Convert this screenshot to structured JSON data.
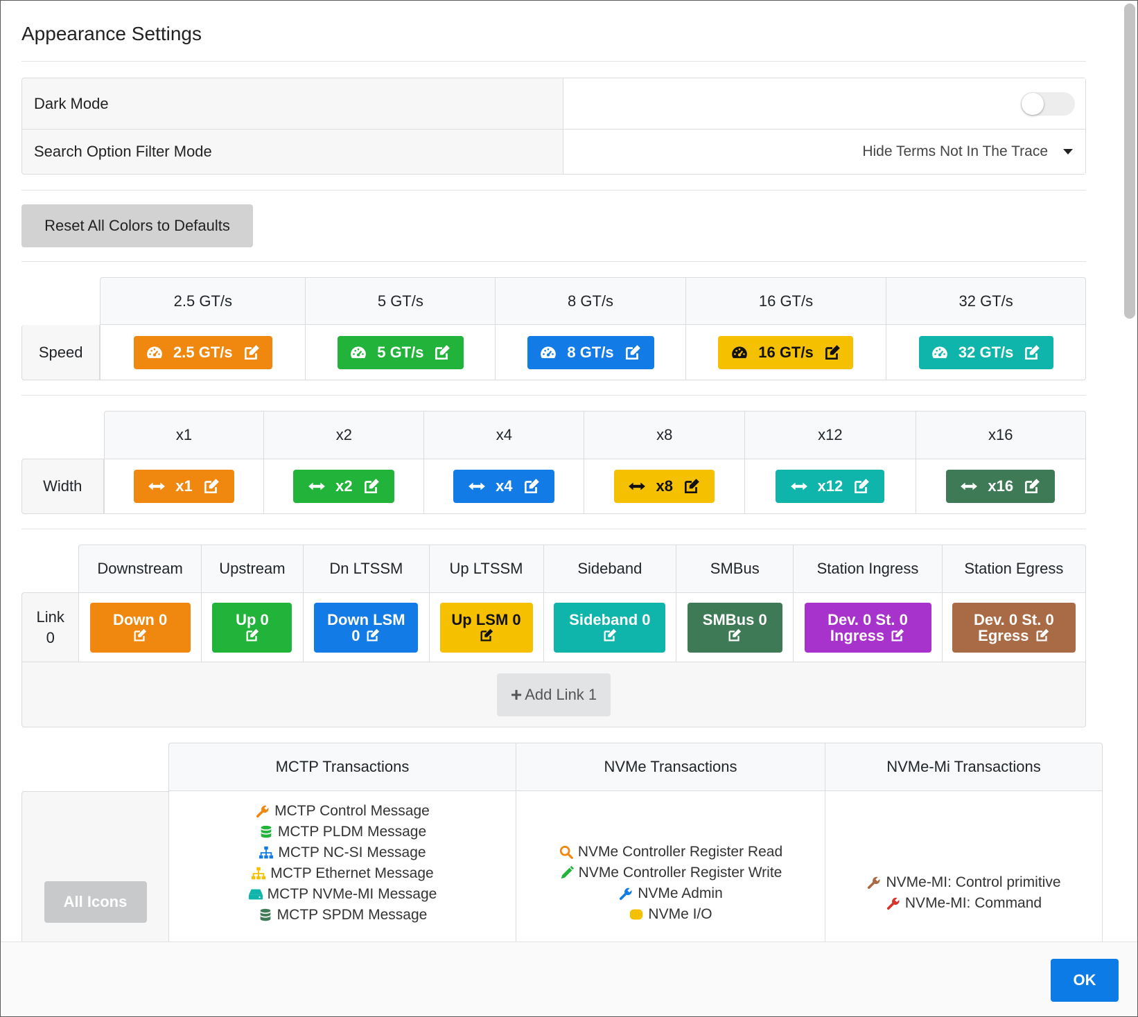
{
  "dialog": {
    "title": "Appearance Settings",
    "ok_label": "OK"
  },
  "settings": {
    "dark_mode_label": "Dark Mode",
    "dark_mode_on": false,
    "filter_mode_label": "Search Option Filter Mode",
    "filter_mode_value": "Hide Terms Not In The Trace"
  },
  "reset_label": "Reset All Colors to Defaults",
  "speed": {
    "row_label": "Speed",
    "columns": [
      "2.5 GT/s",
      "5 GT/s",
      "8 GT/s",
      "16 GT/s",
      "32 GT/s"
    ],
    "buttons": [
      {
        "label": "2.5 GT/s",
        "color": "#f0870e"
      },
      {
        "label": "5 GT/s",
        "color": "#22b33b"
      },
      {
        "label": "8 GT/s",
        "color": "#127be6"
      },
      {
        "label": "16 GT/s",
        "color": "#f5c000"
      },
      {
        "label": "32 GT/s",
        "color": "#0fb5aa"
      }
    ]
  },
  "width": {
    "row_label": "Width",
    "columns": [
      "x1",
      "x2",
      "x4",
      "x8",
      "x12",
      "x16"
    ],
    "buttons": [
      {
        "label": "x1",
        "color": "#f0870e"
      },
      {
        "label": "x2",
        "color": "#22b33b"
      },
      {
        "label": "x4",
        "color": "#127be6"
      },
      {
        "label": "x8",
        "color": "#f5c000"
      },
      {
        "label": "x12",
        "color": "#0fb5aa"
      },
      {
        "label": "x16",
        "color": "#3f7a57"
      }
    ]
  },
  "link": {
    "row_label_1": "Link",
    "row_label_2": "0",
    "columns": [
      "Downstream",
      "Upstream",
      "Dn LTSSM",
      "Up LTSSM",
      "Sideband",
      "SMBus",
      "Station Ingress",
      "Station Egress"
    ],
    "buttons": [
      {
        "line1": "Down 0",
        "line2": "",
        "color": "#f0870e"
      },
      {
        "line1": "Up 0",
        "line2": "",
        "color": "#22b33b"
      },
      {
        "line1": "Down LSM",
        "line2": "0",
        "color": "#127be6"
      },
      {
        "line1": "Up LSM 0",
        "line2": "",
        "color": "#f5c000"
      },
      {
        "line1": "Sideband 0",
        "line2": "",
        "color": "#0fb5aa"
      },
      {
        "line1": "SMBus 0",
        "line2": "",
        "color": "#3f7a57"
      },
      {
        "line1": "Dev. 0 St. 0",
        "line2": "Ingress",
        "color": "#a833cc"
      },
      {
        "line1": "Dev. 0 St. 0",
        "line2": "Egress",
        "color": "#a86b45"
      }
    ],
    "add_label": "Add Link 1"
  },
  "transactions": {
    "all_icons_label": "All Icons",
    "columns": [
      "MCTP Transactions",
      "NVMe Transactions",
      "NVMe-Mi Transactions"
    ],
    "mctp": [
      {
        "label": "MCTP Control Message",
        "icon": "wrench-icon",
        "color": "#f0870e"
      },
      {
        "label": "MCTP PLDM Message",
        "icon": "database-icon",
        "color": "#22b33b"
      },
      {
        "label": "MCTP NC-SI Message",
        "icon": "sitemap-icon",
        "color": "#127be6"
      },
      {
        "label": "MCTP Ethernet Message",
        "icon": "sitemap-icon",
        "color": "#f5c000"
      },
      {
        "label": "MCTP NVMe-MI Message",
        "icon": "hdd-icon",
        "color": "#0fb5aa"
      },
      {
        "label": "MCTP SPDM Message",
        "icon": "database-icon",
        "color": "#3f7a57"
      }
    ],
    "nvme": [
      {
        "label": "NVMe Controller Register Read",
        "icon": "search-icon",
        "color": "#f0870e"
      },
      {
        "label": "NVMe Controller Register Write",
        "icon": "pencil-icon",
        "color": "#22b33b"
      },
      {
        "label": "NVMe Admin",
        "icon": "wrench-icon",
        "color": "#127be6"
      },
      {
        "label": "NVMe I/O",
        "icon": "circle-icon",
        "color": "#f5c000"
      }
    ],
    "nvme_mi": [
      {
        "label": "NVMe-MI: Control primitive",
        "icon": "wrench-icon",
        "color": "#a86b45"
      },
      {
        "label": "NVMe-MI: Command",
        "icon": "wrench-icon",
        "color": "#d9342b"
      }
    ]
  }
}
